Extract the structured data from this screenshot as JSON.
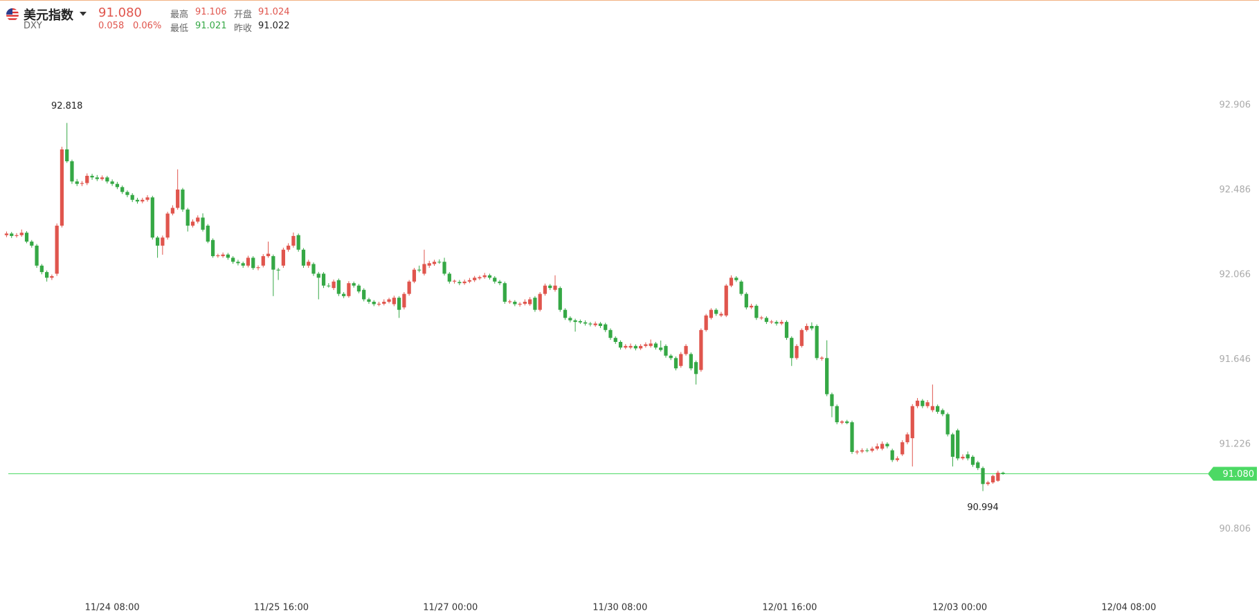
{
  "header": {
    "name": "美元指数",
    "code": "DXY",
    "price": "91.080",
    "change": "0.058",
    "change_pct": "0.06%",
    "high_label": "最高",
    "high": "91.106",
    "low_label": "最低",
    "low": "91.021",
    "open_label": "开盘",
    "open": "91.024",
    "prev_close_label": "昨收",
    "prev_close": "91.022"
  },
  "chart_data": {
    "type": "candlestick",
    "up_color": "#e0554d",
    "down_color": "#35a845",
    "xlim": [
      -1.3,
      238
    ],
    "ylim": [
      90.526,
      93.235
    ],
    "yticks": [
      90.806,
      91.226,
      91.646,
      92.066,
      92.486,
      92.906
    ],
    "xticks": [
      {
        "value": 21,
        "label": "11/24 08:00"
      },
      {
        "value": 54.6,
        "label": "11/25 16:00"
      },
      {
        "value": 88.2,
        "label": "11/27 00:00"
      },
      {
        "value": 121.9,
        "label": "11/30 08:00"
      },
      {
        "value": 155.6,
        "label": "12/01 16:00"
      },
      {
        "value": 189.4,
        "label": "12/03 00:00"
      },
      {
        "value": 223,
        "label": "12/04 08:00"
      }
    ],
    "last_price": {
      "value": 91.08,
      "label": "91.080"
    },
    "last_price_color": "#4cd964",
    "candles": [
      [
        92.262,
        92.28,
        92.252,
        92.27
      ],
      [
        92.27,
        92.278,
        92.248,
        92.258
      ],
      [
        92.258,
        92.272,
        92.25,
        92.262
      ],
      [
        92.262,
        92.29,
        92.254,
        92.274
      ],
      [
        92.274,
        92.282,
        92.222,
        92.23
      ],
      [
        92.23,
        92.238,
        92.2,
        92.21
      ],
      [
        92.21,
        92.218,
        92.1,
        92.111
      ],
      [
        92.111,
        92.119,
        92.068,
        92.079
      ],
      [
        92.079,
        92.087,
        92.032,
        92.051
      ],
      [
        92.051,
        92.067,
        92.04,
        92.059
      ],
      [
        92.071,
        92.32,
        92.06,
        92.309
      ],
      [
        92.309,
        92.7,
        92.3,
        92.687
      ],
      [
        92.687,
        92.818,
        92.62,
        92.628
      ],
      [
        92.628,
        92.636,
        92.516,
        92.528
      ],
      [
        92.528,
        92.54,
        92.505,
        92.516
      ],
      [
        92.516,
        92.53,
        92.505,
        92.52
      ],
      [
        92.52,
        92.568,
        92.51,
        92.556
      ],
      [
        92.556,
        92.566,
        92.536,
        92.548
      ],
      [
        92.548,
        92.56,
        92.53,
        92.54
      ],
      [
        92.54,
        92.558,
        92.532,
        92.548
      ],
      [
        92.548,
        92.556,
        92.518,
        92.528
      ],
      [
        92.528,
        92.538,
        92.506,
        92.516
      ],
      [
        92.516,
        92.526,
        92.49,
        92.5
      ],
      [
        92.5,
        92.508,
        92.466,
        92.476
      ],
      [
        92.476,
        92.484,
        92.45,
        92.461
      ],
      [
        92.461,
        92.47,
        92.426,
        92.437
      ],
      [
        92.437,
        92.447,
        92.418,
        92.429
      ],
      [
        92.429,
        92.447,
        92.42,
        92.437
      ],
      [
        92.437,
        92.46,
        92.428,
        92.449
      ],
      [
        92.449,
        92.457,
        92.24,
        92.25
      ],
      [
        92.25,
        92.258,
        92.15,
        92.21
      ],
      [
        92.21,
        92.26,
        92.165,
        92.25
      ],
      [
        92.25,
        92.378,
        92.24,
        92.369
      ],
      [
        92.369,
        92.41,
        92.36,
        92.397
      ],
      [
        92.397,
        92.588,
        92.388,
        92.488
      ],
      [
        92.488,
        92.496,
        92.378,
        92.389
      ],
      [
        92.389,
        92.397,
        92.28,
        92.309
      ],
      [
        92.309,
        92.34,
        92.3,
        92.329
      ],
      [
        92.329,
        92.36,
        92.32,
        92.349
      ],
      [
        92.349,
        92.37,
        92.28,
        92.289
      ],
      [
        92.309,
        92.317,
        92.222,
        92.23
      ],
      [
        92.238,
        92.246,
        92.15,
        92.158
      ],
      [
        92.158,
        92.17,
        92.15,
        92.162
      ],
      [
        92.158,
        92.176,
        92.15,
        92.166
      ],
      [
        92.166,
        92.174,
        92.14,
        92.15
      ],
      [
        92.15,
        92.158,
        92.12,
        92.13
      ],
      [
        92.13,
        92.14,
        92.112,
        92.123
      ],
      [
        92.123,
        92.131,
        92.1,
        92.111
      ],
      [
        92.111,
        92.16,
        92.102,
        92.15
      ],
      [
        92.15,
        92.158,
        92.09,
        92.099
      ],
      [
        92.099,
        92.112,
        92.088,
        92.103
      ],
      [
        92.111,
        92.168,
        92.102,
        92.158
      ],
      [
        92.158,
        92.23,
        92.15,
        92.17
      ],
      [
        92.158,
        92.166,
        91.96,
        92.091
      ],
      [
        92.091,
        92.1,
        92.04,
        92.087
      ],
      [
        92.111,
        92.2,
        92.1,
        92.19
      ],
      [
        92.19,
        92.222,
        92.18,
        92.21
      ],
      [
        92.21,
        92.275,
        92.2,
        92.258
      ],
      [
        92.262,
        92.27,
        92.18,
        92.19
      ],
      [
        92.19,
        92.198,
        92.1,
        92.111
      ],
      [
        92.111,
        92.14,
        92.1,
        92.13
      ],
      [
        92.119,
        92.127,
        92.06,
        92.071
      ],
      [
        92.071,
        92.08,
        91.944,
        92.051
      ],
      [
        92.071,
        92.079,
        92.0,
        92.012
      ],
      [
        92.012,
        92.024,
        92.002,
        92.01
      ],
      [
        92.0,
        92.042,
        91.99,
        92.032
      ],
      [
        92.039,
        92.047,
        91.96,
        91.971
      ],
      [
        91.971,
        91.98,
        91.95,
        91.96
      ],
      [
        91.96,
        92.034,
        91.952,
        92.024
      ],
      [
        92.024,
        92.032,
        92.002,
        92.012
      ],
      [
        92.012,
        92.02,
        91.974,
        91.983
      ],
      [
        91.991,
        91.999,
        91.934,
        91.944
      ],
      [
        91.944,
        91.952,
        91.922,
        91.932
      ],
      [
        91.932,
        91.94,
        91.91,
        91.92
      ],
      [
        91.918,
        91.932,
        91.91,
        91.922
      ],
      [
        91.922,
        91.944,
        91.914,
        91.932
      ],
      [
        91.932,
        91.952,
        91.924,
        91.944
      ],
      [
        91.92,
        91.962,
        91.91,
        91.952
      ],
      [
        91.952,
        91.96,
        91.852,
        91.892
      ],
      [
        91.904,
        91.98,
        91.894,
        91.971
      ],
      [
        91.971,
        92.04,
        91.962,
        92.032
      ],
      [
        92.032,
        92.1,
        92.024,
        92.091
      ],
      [
        92.091,
        92.111,
        92.078,
        92.087
      ],
      [
        92.071,
        92.19,
        92.062,
        92.119
      ],
      [
        92.111,
        92.135,
        92.1,
        92.123
      ],
      [
        92.119,
        92.14,
        92.11,
        92.13
      ],
      [
        92.13,
        92.142,
        92.12,
        92.128
      ],
      [
        92.13,
        92.15,
        92.062,
        92.071
      ],
      [
        92.071,
        92.079,
        92.022,
        92.032
      ],
      [
        92.032,
        92.042,
        92.022,
        92.036
      ],
      [
        92.03,
        92.04,
        92.014,
        92.024
      ],
      [
        92.024,
        92.042,
        92.016,
        92.032
      ],
      [
        92.032,
        92.05,
        92.024,
        92.039
      ],
      [
        92.039,
        92.06,
        92.03,
        92.051
      ],
      [
        92.048,
        92.062,
        92.04,
        92.054
      ],
      [
        92.054,
        92.075,
        92.046,
        92.063
      ],
      [
        92.063,
        92.071,
        92.042,
        92.051
      ],
      [
        92.051,
        92.059,
        92.022,
        92.032
      ],
      [
        92.032,
        92.04,
        92.014,
        92.024
      ],
      [
        92.024,
        92.032,
        91.922,
        91.932
      ],
      [
        91.93,
        91.942,
        91.922,
        91.934
      ],
      [
        91.932,
        91.94,
        91.91,
        91.92
      ],
      [
        91.918,
        91.93,
        91.908,
        91.922
      ],
      [
        91.922,
        91.944,
        91.914,
        91.932
      ],
      [
        91.92,
        91.955,
        91.912,
        91.944
      ],
      [
        91.952,
        91.96,
        91.882,
        91.892
      ],
      [
        91.892,
        91.98,
        91.884,
        91.971
      ],
      [
        91.971,
        92.022,
        91.962,
        92.012
      ],
      [
        92.012,
        92.02,
        91.99,
        92.0
      ],
      [
        91.991,
        92.063,
        91.982,
        92.012
      ],
      [
        92.0,
        92.008,
        91.882,
        91.892
      ],
      [
        91.892,
        91.9,
        91.842,
        91.852
      ],
      [
        91.852,
        91.86,
        91.83,
        91.84
      ],
      [
        91.84,
        91.848,
        91.784,
        91.832
      ],
      [
        91.836,
        91.844,
        91.822,
        91.83
      ],
      [
        91.83,
        91.84,
        91.814,
        91.824
      ],
      [
        91.824,
        91.832,
        91.81,
        91.82
      ],
      [
        91.816,
        91.834,
        91.808,
        91.824
      ],
      [
        91.824,
        91.832,
        91.802,
        91.812
      ],
      [
        91.82,
        91.828,
        91.782,
        91.792
      ],
      [
        91.792,
        91.8,
        91.743,
        91.753
      ],
      [
        91.753,
        91.761,
        91.723,
        91.733
      ],
      [
        91.733,
        91.741,
        91.695,
        91.705
      ],
      [
        91.705,
        91.722,
        91.697,
        91.713
      ],
      [
        91.705,
        91.725,
        91.697,
        91.713
      ],
      [
        91.713,
        91.721,
        91.691,
        91.701
      ],
      [
        91.701,
        91.722,
        91.693,
        91.713
      ],
      [
        91.713,
        91.731,
        91.705,
        91.721
      ],
      [
        91.713,
        91.745,
        91.705,
        91.725
      ],
      [
        91.725,
        91.733,
        91.695,
        91.705
      ],
      [
        91.705,
        91.74,
        91.685,
        91.693
      ],
      [
        91.713,
        91.721,
        91.655,
        91.665
      ],
      [
        91.665,
        91.673,
        91.643,
        91.653
      ],
      [
        91.653,
        91.661,
        91.592,
        91.602
      ],
      [
        91.614,
        91.683,
        91.605,
        91.673
      ],
      [
        91.673,
        91.722,
        91.665,
        91.713
      ],
      [
        91.673,
        91.681,
        91.592,
        91.602
      ],
      [
        91.633,
        91.641,
        91.522,
        91.574
      ],
      [
        91.594,
        91.8,
        91.585,
        91.792
      ],
      [
        91.792,
        91.872,
        91.784,
        91.864
      ],
      [
        91.852,
        91.9,
        91.844,
        91.892
      ],
      [
        91.892,
        91.9,
        91.862,
        91.872
      ],
      [
        91.864,
        91.882,
        91.856,
        91.872
      ],
      [
        91.864,
        92.02,
        91.856,
        92.012
      ],
      [
        92.012,
        92.063,
        92.004,
        92.051
      ],
      [
        92.051,
        92.059,
        92.03,
        92.039
      ],
      [
        92.032,
        92.04,
        91.962,
        91.971
      ],
      [
        91.971,
        91.979,
        91.894,
        91.904
      ],
      [
        91.904,
        91.922,
        91.896,
        91.912
      ],
      [
        91.912,
        91.92,
        91.842,
        91.852
      ],
      [
        91.85,
        91.862,
        91.842,
        91.854
      ],
      [
        91.852,
        91.86,
        91.822,
        91.832
      ],
      [
        91.83,
        91.842,
        91.822,
        91.834
      ],
      [
        91.832,
        91.84,
        91.814,
        91.824
      ],
      [
        91.824,
        91.842,
        91.816,
        91.832
      ],
      [
        91.832,
        91.84,
        91.743,
        91.753
      ],
      [
        91.753,
        91.761,
        91.614,
        91.653
      ],
      [
        91.653,
        91.722,
        91.645,
        91.713
      ],
      [
        91.713,
        91.8,
        91.705,
        91.792
      ],
      [
        91.792,
        91.824,
        91.784,
        91.812
      ],
      [
        91.812,
        91.83,
        91.79,
        91.8
      ],
      [
        91.812,
        91.82,
        91.643,
        91.653
      ],
      [
        91.65,
        91.662,
        91.64,
        91.655
      ],
      [
        91.653,
        91.741,
        91.464,
        91.474
      ],
      [
        91.474,
        91.482,
        91.36,
        91.415
      ],
      [
        91.415,
        91.423,
        91.325,
        91.335
      ],
      [
        91.333,
        91.345,
        91.325,
        91.339
      ],
      [
        91.339,
        91.347,
        91.325,
        91.331
      ],
      [
        91.335,
        91.343,
        91.178,
        91.188
      ],
      [
        91.186,
        91.198,
        91.176,
        91.19
      ],
      [
        91.19,
        91.206,
        91.182,
        91.196
      ],
      [
        91.196,
        91.206,
        91.186,
        91.194
      ],
      [
        91.194,
        91.214,
        91.186,
        91.204
      ],
      [
        91.204,
        91.23,
        91.196,
        91.216
      ],
      [
        91.204,
        91.24,
        91.196,
        91.228
      ],
      [
        91.228,
        91.236,
        91.206,
        91.216
      ],
      [
        91.196,
        91.204,
        91.138,
        91.148
      ],
      [
        91.148,
        91.166,
        91.14,
        91.156
      ],
      [
        91.176,
        91.246,
        91.168,
        91.236
      ],
      [
        91.236,
        91.285,
        91.226,
        91.275
      ],
      [
        91.256,
        91.425,
        91.116,
        91.415
      ],
      [
        91.415,
        91.455,
        91.405,
        91.442
      ],
      [
        91.442,
        91.45,
        91.405,
        91.415
      ],
      [
        91.415,
        91.445,
        91.405,
        91.434
      ],
      [
        91.395,
        91.522,
        91.385,
        91.415
      ],
      [
        91.415,
        91.423,
        91.377,
        91.387
      ],
      [
        91.395,
        91.403,
        91.365,
        91.375
      ],
      [
        91.375,
        91.383,
        91.265,
        91.275
      ],
      [
        91.275,
        91.283,
        91.116,
        91.164
      ],
      [
        91.295,
        91.303,
        91.146,
        91.156
      ],
      [
        91.156,
        91.176,
        91.148,
        91.164
      ],
      [
        91.176,
        91.19,
        91.146,
        91.156
      ],
      [
        91.164,
        91.172,
        91.114,
        91.124
      ],
      [
        91.136,
        91.144,
        91.098,
        91.108
      ],
      [
        91.108,
        91.116,
        90.994,
        91.029
      ],
      [
        91.029,
        91.045,
        91.021,
        91.037
      ],
      [
        91.037,
        91.075,
        91.03,
        91.069
      ],
      [
        91.045,
        91.095,
        91.04,
        91.085
      ],
      [
        91.085,
        91.09,
        91.075,
        91.08
      ]
    ]
  }
}
